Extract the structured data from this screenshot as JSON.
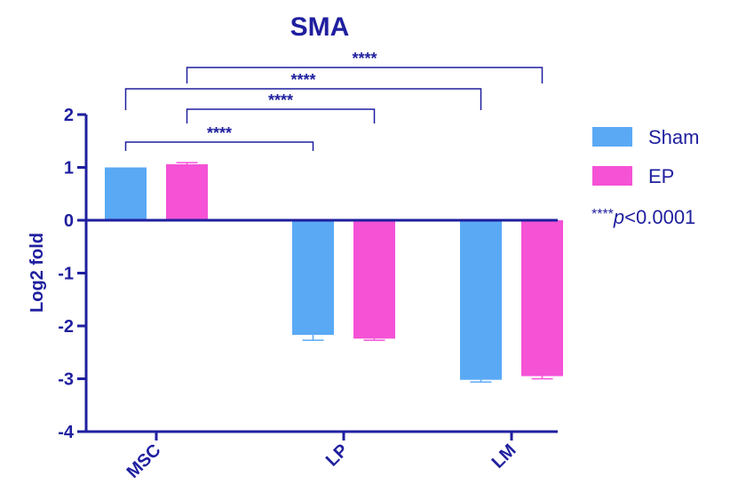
{
  "chart_data": {
    "type": "bar",
    "title": "SMA",
    "xlabel": "",
    "ylabel": "Log2 fold",
    "categories": [
      "MSC",
      "LP",
      "LM"
    ],
    "ylim": [
      -4,
      2
    ],
    "yticks": [
      "2",
      "1",
      "0",
      "-1",
      "-2",
      "-3",
      "-4"
    ],
    "grid": false,
    "legend_position": "right",
    "series": [
      {
        "name": "Sham",
        "color": "#5aa9f5",
        "values": [
          1.0,
          -2.17,
          -3.02
        ],
        "errors": [
          0.0,
          0.1,
          0.04
        ]
      },
      {
        "name": "EP",
        "color": "#f552d6",
        "values": [
          1.06,
          -2.24,
          -2.95
        ],
        "errors": [
          0.03,
          0.03,
          0.05
        ]
      }
    ],
    "axis_color": "#1f1f9f",
    "significance": [
      {
        "from": {
          "category": 0,
          "series": 0
        },
        "to": {
          "category": 1,
          "series": 0
        },
        "label": "****"
      },
      {
        "from": {
          "category": 0,
          "series": 1
        },
        "to": {
          "category": 1,
          "series": 1
        },
        "label": "****"
      },
      {
        "from": {
          "category": 0,
          "series": 0
        },
        "to": {
          "category": 2,
          "series": 0
        },
        "label": "****"
      },
      {
        "from": {
          "category": 0,
          "series": 1
        },
        "to": {
          "category": 2,
          "series": 1
        },
        "label": "****"
      }
    ],
    "note": {
      "stars": "****",
      "p": "p",
      "rest": "<0.0001"
    }
  }
}
